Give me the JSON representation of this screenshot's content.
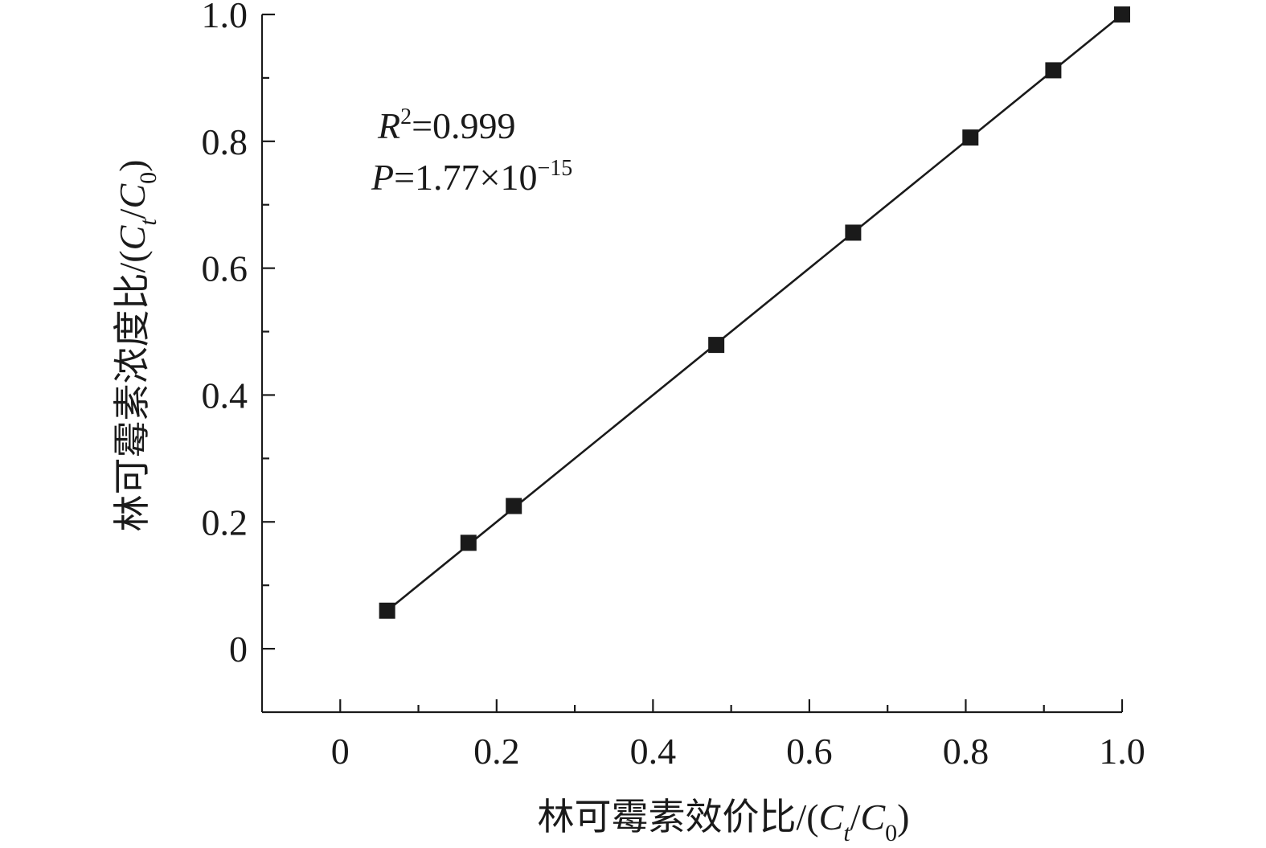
{
  "chart_data": {
    "type": "scatter",
    "title": "",
    "xlabel": {
      "text": "林可霉素效价比/(",
      "var1": "C",
      "sub1": "t",
      "slash": "/",
      "var2": "C",
      "sub2": "0",
      "close": ")"
    },
    "ylabel": {
      "text": "林可霉素浓度比/(",
      "var1": "C",
      "sub1": "t",
      "slash": "/",
      "var2": "C",
      "sub2": "0",
      "close": ")"
    },
    "xlim": [
      -0.1,
      1.0
    ],
    "ylim": [
      -0.1,
      1.0
    ],
    "x_ticks": [
      {
        "value": 0,
        "label": "0"
      },
      {
        "value": 0.2,
        "label": "0.2"
      },
      {
        "value": 0.4,
        "label": "0.4"
      },
      {
        "value": 0.6,
        "label": "0.6"
      },
      {
        "value": 0.8,
        "label": "0.8"
      },
      {
        "value": 1.0,
        "label": "1.0"
      }
    ],
    "x_minor_ticks": [
      0.1,
      0.3,
      0.5,
      0.7,
      0.9
    ],
    "y_ticks": [
      {
        "value": 0,
        "label": "0"
      },
      {
        "value": 0.2,
        "label": "0.2"
      },
      {
        "value": 0.4,
        "label": "0.4"
      },
      {
        "value": 0.6,
        "label": "0.6"
      },
      {
        "value": 0.8,
        "label": "0.8"
      },
      {
        "value": 1.0,
        "label": "1.0"
      }
    ],
    "y_minor_ticks": [
      0.1,
      0.3,
      0.5,
      0.7,
      0.9
    ],
    "grid": false,
    "marker": "square",
    "color": "#1a1a1a",
    "points": [
      {
        "x": 0.06,
        "y": 0.06
      },
      {
        "x": 0.164,
        "y": 0.167
      },
      {
        "x": 0.222,
        "y": 0.225
      },
      {
        "x": 0.481,
        "y": 0.479
      },
      {
        "x": 0.656,
        "y": 0.656
      },
      {
        "x": 0.806,
        "y": 0.806
      },
      {
        "x": 0.912,
        "y": 0.912
      },
      {
        "x": 1.0,
        "y": 1.0
      }
    ],
    "fit_line": {
      "x": [
        0.06,
        1.0
      ],
      "y": [
        0.06,
        1.0
      ]
    },
    "annotations": {
      "r2": {
        "var": "R",
        "sup": "2",
        "rest": "=0.999"
      },
      "p": {
        "var": "P",
        "rest": "=1.77×10",
        "sup": "−15"
      }
    }
  }
}
